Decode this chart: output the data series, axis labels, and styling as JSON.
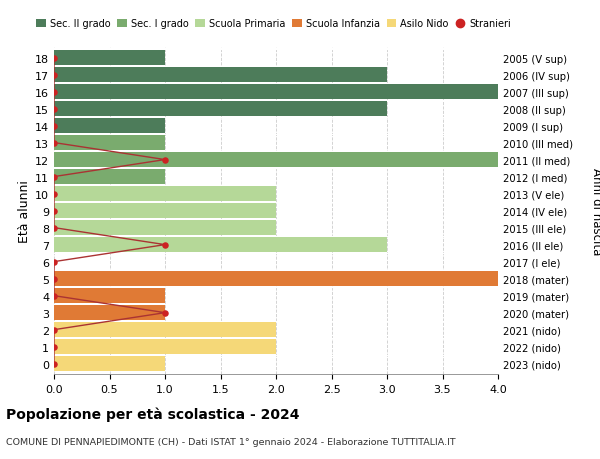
{
  "ages": [
    18,
    17,
    16,
    15,
    14,
    13,
    12,
    11,
    10,
    9,
    8,
    7,
    6,
    5,
    4,
    3,
    2,
    1,
    0
  ],
  "years": [
    "2005 (V sup)",
    "2006 (IV sup)",
    "2007 (III sup)",
    "2008 (II sup)",
    "2009 (I sup)",
    "2010 (III med)",
    "2011 (II med)",
    "2012 (I med)",
    "2013 (V ele)",
    "2014 (IV ele)",
    "2015 (III ele)",
    "2016 (II ele)",
    "2017 (I ele)",
    "2018 (mater)",
    "2019 (mater)",
    "2020 (mater)",
    "2021 (nido)",
    "2022 (nido)",
    "2023 (nido)"
  ],
  "bar_values": [
    1,
    3,
    4,
    3,
    1,
    1,
    4,
    1,
    2,
    2,
    2,
    3,
    0,
    4,
    1,
    1,
    2,
    2,
    1
  ],
  "bar_colors": [
    "#4d7c5a",
    "#4d7c5a",
    "#4d7c5a",
    "#4d7c5a",
    "#4d7c5a",
    "#7aab6e",
    "#7aab6e",
    "#7aab6e",
    "#b5d898",
    "#b5d898",
    "#b5d898",
    "#b5d898",
    "#b5d898",
    "#e07a35",
    "#e07a35",
    "#e07a35",
    "#f5d878",
    "#f5d878",
    "#f5d878"
  ],
  "stranieri_x": [
    0,
    0,
    0,
    0,
    0,
    0,
    1,
    0,
    0,
    0,
    0,
    1,
    0,
    0,
    0,
    1,
    0,
    0,
    0
  ],
  "legend_labels": [
    "Sec. II grado",
    "Sec. I grado",
    "Scuola Primaria",
    "Scuola Infanzia",
    "Asilo Nido",
    "Stranieri"
  ],
  "legend_colors": [
    "#4d7c5a",
    "#7aab6e",
    "#b5d898",
    "#e07a35",
    "#f5d878",
    "#cc2222"
  ],
  "title": "Popolazione per età scolastica - 2024",
  "subtitle": "COMUNE DI PENNAPIEDIMONTE (CH) - Dati ISTAT 1° gennaio 2024 - Elaborazione TUTTITALIA.IT",
  "ylabel_left": "Età alunni",
  "ylabel_right": "Anni di nascita",
  "xlim": [
    0,
    4.0
  ],
  "bar_height": 0.88,
  "bg_color": "#ffffff",
  "grid_color": "#cccccc",
  "stranieri_line_color": "#aa3333",
  "stranieri_dot_color": "#cc2222"
}
